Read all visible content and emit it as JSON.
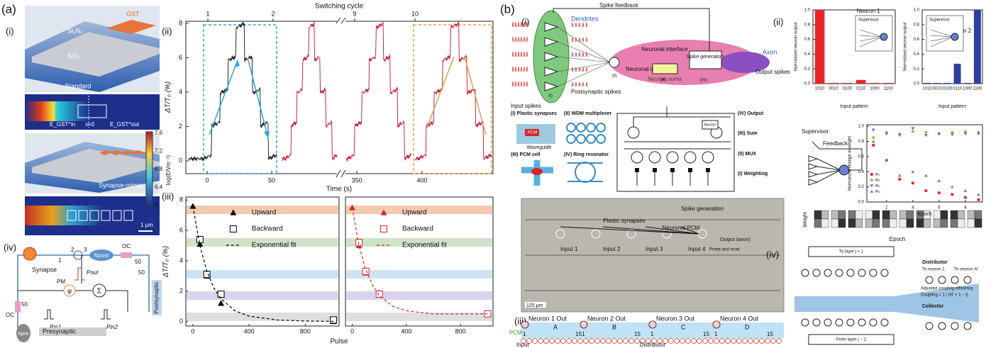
{
  "figure": {
    "a": {
      "label": "(a)",
      "i": {
        "label": "(i)",
        "top_layer": "GST",
        "waveguide": "Si₃N₄",
        "substrate": "SiO₂",
        "standard": "Standard",
        "mimic": "Synapse-mimic",
        "scale": "1 μm",
        "colorbar_label": "log(E/Vm⁻¹)",
        "colorbar_ticks": [
          7.6,
          7.2,
          6.8,
          6.4,
          6
        ],
        "field_labels": [
          "E_GST^in",
          "x=0",
          "E_GST^out"
        ]
      },
      "ii": {
        "label": "(ii)",
        "top_axis": "Switching cycle",
        "cycles": [
          1,
          2,
          9,
          10
        ],
        "xlabel": "Time (s)",
        "ylabel": "ΔT/T₀ (%)",
        "xticks": [
          0,
          50,
          350,
          400
        ],
        "yticks": [
          0,
          2,
          4,
          6,
          8
        ]
      },
      "iii": {
        "label": "(iii)"
      },
      "iv": {
        "label": "(iv)",
        "synapse": "Synapse",
        "presynaptic": "Presynaptic",
        "postsynaptic": "Postsynaptic",
        "pm": "PM",
        "oc": "OC",
        "split": "50",
        "ports": [
          "1",
          "2",
          "3"
        ],
        "p_out": "Pout",
        "p_in1": "Pin1",
        "p_in2": "Pin2",
        "n_post": "Npost",
        "n_pre": "Npre",
        "sum": "Σ",
        "phase": "φ"
      }
    },
    "b": {
      "label": "(b)",
      "i": {
        "label": "(i)",
        "spike_feedback": "Spike feedback",
        "dendrites": "Dendrites",
        "input_spikes": "Input spikes",
        "postsynaptic": "Postsynaptic spikes",
        "neuronal_input": "Neuronal input",
        "neuronal_interface": "Neuronal interface",
        "spike_generation": "Spike generation",
        "axon": "Axon",
        "output_spikes": "Output spikes",
        "soma": "Neuron soma",
        "stages": [
          "(I)",
          "(II)",
          "(III)",
          "(IV)"
        ],
        "components": [
          "(I) Plastic synapses",
          "(II) WDM multiplexer",
          "(III) PCM cell",
          "(IV) Ring resonator"
        ],
        "pcm": "PCM",
        "waveguide": "Waveguide",
        "layers": [
          "(IV) Output",
          "(III) Sum",
          "(II) MUX",
          "(I) Weighting"
        ],
        "neuron": "Neuron",
        "micro": {
          "spike_generation": "Spike generation",
          "neuronal_pcm": "Neuronal PCM",
          "plastic_synapses": "Plastic synapses",
          "inputs": [
            "Input 1",
            "Input 2",
            "Input 3",
            "Input 4"
          ],
          "output": "Output (axon)",
          "probe": "Probe and reset",
          "scale": "125 μm"
        }
      },
      "ii": {
        "label": "(ii)",
        "supervisor": "Supervisor",
        "feedback": "Feedback",
        "weight": "Weight",
        "epoch": "Epoch"
      },
      "iii": {
        "label": "(iii)",
        "outputs": [
          "Neuron 1 Out",
          "Neuron 2 Out",
          "Neuron 3 Out",
          "Neuron 4 Out"
        ],
        "groups": [
          "A",
          "B",
          "C",
          "D"
        ],
        "first": "1",
        "last": "15",
        "pcm": "PCM",
        "input": "Input",
        "distributor": "Distributor"
      },
      "iv": {
        "label": "(iv)",
        "to_layer": "To layer j + 1",
        "from_layer": "From layer j − 1",
        "distributor": "Distributor",
        "to_n1": "To neuron 1",
        "to_nn": "To neuron N'",
        "adjusted": "Adjusted coupling efficiency",
        "coupling": "Coupling = 1 / (N' + 1 − i)",
        "collector": "Collector"
      }
    }
  },
  "chart_data": [
    {
      "type": "bar",
      "xlabel": "Input pattern",
      "ylabel": "Normalized neuron output",
      "categories": [
        "1010",
        "0010",
        "0100",
        "0110",
        "1000",
        "1100"
      ],
      "series": [
        {
          "name": "Neuron 1",
          "color": "#e8262a",
          "values": [
            1.0,
            0.01,
            0.01,
            0.05,
            0.01,
            0.01
          ]
        }
      ],
      "ylim": [
        0,
        1
      ],
      "yticks": [
        {
          "value": 0,
          "label": "0.0"
        },
        0.2,
        0.4,
        0.6,
        0.8,
        {
          "value": 1,
          "label": "1.0"
        }
      ]
    },
    {
      "type": "bar",
      "xlabel": "Input pattern",
      "ylabel": "Normalized neuron output",
      "categories": [
        "1010",
        "0010",
        "0100",
        "0110",
        "1000",
        "1100"
      ],
      "series": [
        {
          "name": "Neuron 2",
          "color": "#2f3f9e",
          "values": [
            0.01,
            0.01,
            0.01,
            0.27,
            0.01,
            1.0
          ]
        }
      ],
      "ylim": [
        0,
        1
      ],
      "yticks": [
        {
          "value": 0,
          "label": "0.0"
        },
        0.2,
        0.4,
        0.6,
        0.8,
        {
          "value": 1,
          "label": "1.0"
        }
      ]
    },
    {
      "type": "scatter",
      "xlabel": "Pulse",
      "ylabel": "ΔT/T₀ (%)",
      "xlim": [
        -50,
        1040
      ],
      "ylim": [
        -0.3,
        8.2
      ],
      "xticks": [
        0,
        400,
        800
      ],
      "yticks": [
        0,
        2,
        4,
        6,
        8
      ],
      "series": [
        {
          "name": "Upward",
          "color": "#000000",
          "marker": "triangle",
          "x": [
            0,
            50,
            100,
            200,
            1000
          ],
          "values": [
            7.6,
            5.1,
            3.0,
            1.2,
            0
          ]
        },
        {
          "name": "Backward",
          "color": "#000000",
          "marker": "square-open",
          "x": [
            50,
            100,
            200,
            1000
          ],
          "values": [
            5.4,
            3.1,
            1.8,
            0.1
          ]
        },
        {
          "name": "Exponential fit",
          "color": "#000000",
          "marker": "line",
          "x": [
            0,
            50,
            100,
            150,
            200,
            300,
            400,
            600,
            800,
            1000
          ],
          "values": [
            7.6,
            5.0,
            3.3,
            2.2,
            1.5,
            0.7,
            0.35,
            0.1,
            0.03,
            0.01
          ]
        }
      ]
    },
    {
      "type": "scatter",
      "xlim": [
        -50,
        1040
      ],
      "ylim": [
        -0.3,
        8.2
      ],
      "xticks": [
        0,
        400,
        800
      ],
      "series": [
        {
          "name": "Upward",
          "color": "#d62728",
          "marker": "triangle",
          "x": [
            0,
            50,
            100,
            200,
            1000
          ],
          "values": [
            7.5,
            5.0,
            3.2,
            1.9,
            0.5
          ]
        },
        {
          "name": "Backward",
          "color": "#d62728",
          "marker": "square-open",
          "x": [
            50,
            100,
            200,
            1000
          ],
          "values": [
            5.2,
            3.3,
            1.8,
            0.5
          ]
        },
        {
          "name": "Exponential fit",
          "color": "#d62728",
          "marker": "line",
          "x": [
            0,
            50,
            100,
            150,
            200,
            300,
            400,
            600,
            800,
            1000
          ],
          "values": [
            7.5,
            5.0,
            3.4,
            2.4,
            1.7,
            1.0,
            0.7,
            0.5,
            0.5,
            0.5
          ]
        }
      ]
    },
    {
      "type": "scatter",
      "xlabel": "Epoch",
      "ylabel": "Normalized change in weight",
      "xlim": [
        0.5,
        9.3
      ],
      "ylim": [
        0,
        1.02
      ],
      "xticks": [
        2,
        4,
        6,
        8
      ],
      "yticks": [
        {
          "value": 0,
          "label": "0.0"
        },
        0.2,
        0.4,
        0.6,
        0.8,
        {
          "value": 1,
          "label": "1.0"
        }
      ],
      "series": [
        {
          "name": "w₁",
          "color": "#e8262a",
          "marker": "square",
          "x": [
            1,
            2,
            3,
            4,
            5,
            6,
            7,
            8,
            9
          ],
          "values": [
            0.75,
            0.55,
            0.3,
            0.25,
            0.15,
            0.12,
            0.1,
            0.06,
            0.03
          ]
        },
        {
          "name": "w₂",
          "color": "#f28e2b",
          "marker": "circle",
          "x": [
            1,
            2,
            3,
            4,
            5,
            6,
            7,
            8,
            9
          ],
          "values": [
            0.85,
            0.92,
            0.9,
            0.93,
            0.92,
            0.9,
            0.92,
            0.93,
            0.92
          ]
        },
        {
          "name": "w₃",
          "color": "#4e79c7",
          "marker": "triangle-down",
          "x": [
            1,
            2,
            3,
            4,
            5,
            6,
            7,
            8,
            9
          ],
          "values": [
            0.95,
            0.9,
            0.88,
            0.97,
            0.88,
            0.9,
            0.89,
            0.9,
            0.9
          ]
        },
        {
          "name": "w₄",
          "color": "#59a14f",
          "marker": "triangle",
          "x": [
            1,
            2,
            3,
            4,
            5,
            6,
            7,
            8,
            9
          ],
          "values": [
            0.8,
            0.55,
            0.35,
            0.4,
            0.35,
            0.28,
            0.2,
            0.15,
            0.1
          ]
        }
      ]
    }
  ]
}
